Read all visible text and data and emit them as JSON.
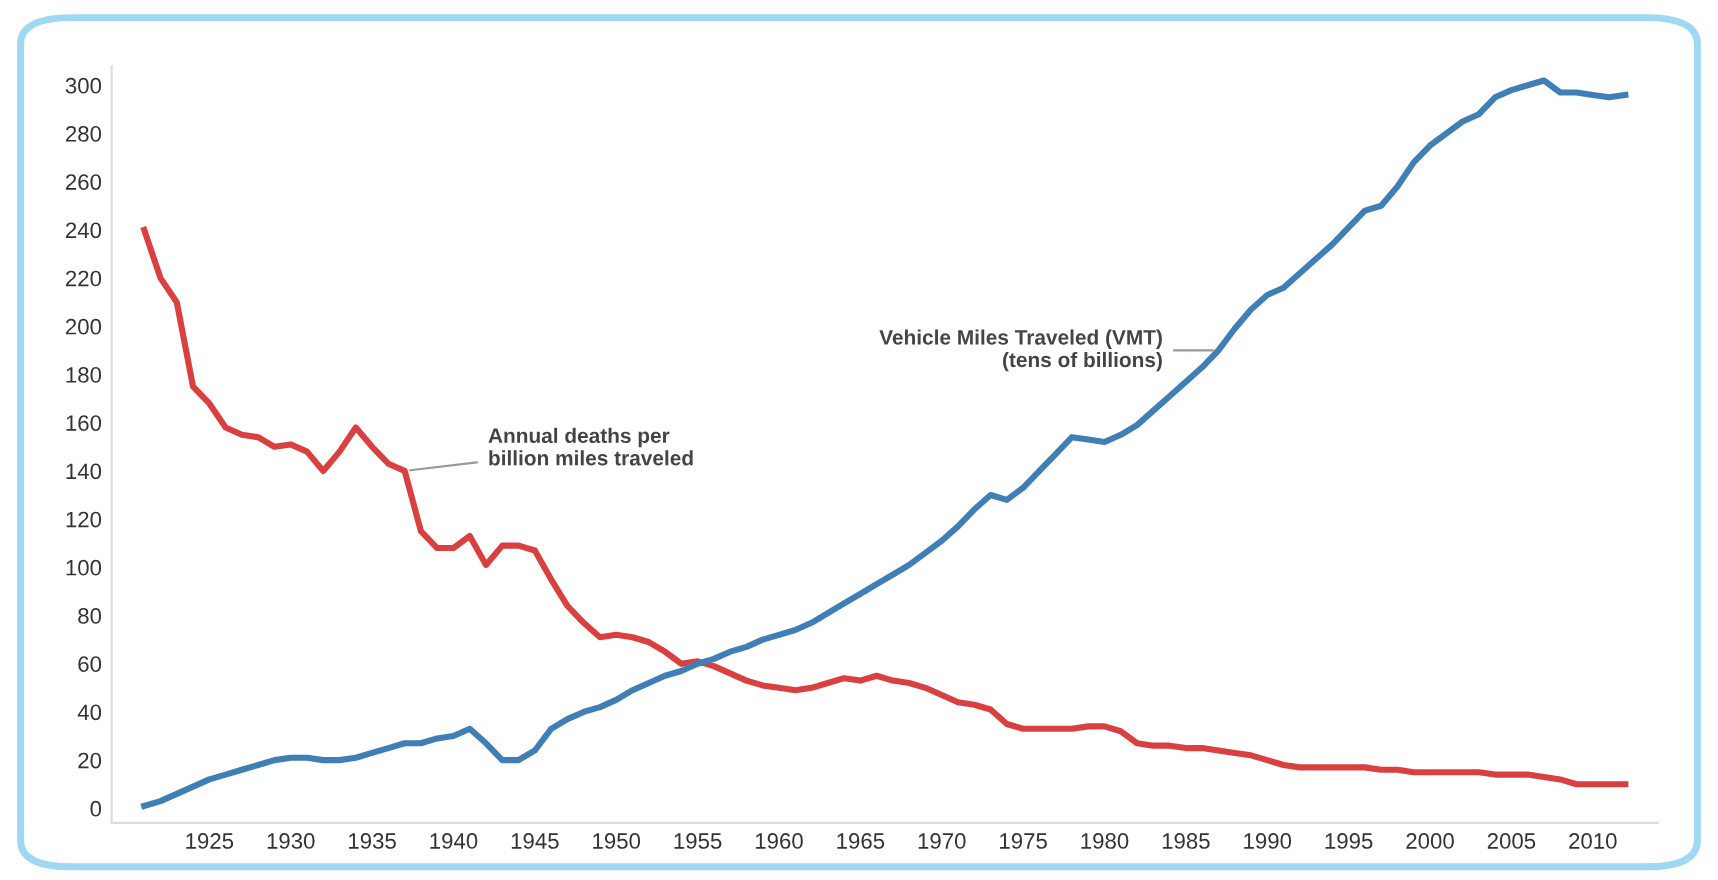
{
  "chart_data": {
    "type": "line",
    "x": [
      1921,
      1922,
      1923,
      1924,
      1925,
      1926,
      1927,
      1928,
      1929,
      1930,
      1931,
      1932,
      1933,
      1934,
      1935,
      1936,
      1937,
      1938,
      1939,
      1940,
      1941,
      1942,
      1943,
      1944,
      1945,
      1946,
      1947,
      1948,
      1949,
      1950,
      1951,
      1952,
      1953,
      1954,
      1955,
      1956,
      1957,
      1958,
      1959,
      1960,
      1961,
      1962,
      1963,
      1964,
      1965,
      1966,
      1967,
      1968,
      1969,
      1970,
      1971,
      1972,
      1973,
      1974,
      1975,
      1976,
      1977,
      1978,
      1979,
      1980,
      1981,
      1982,
      1983,
      1984,
      1985,
      1986,
      1987,
      1988,
      1989,
      1990,
      1991,
      1992,
      1993,
      1994,
      1995,
      1996,
      1997,
      1998,
      1999,
      2000,
      2001,
      2002,
      2003,
      2004,
      2005,
      2006,
      2007,
      2008,
      2009,
      2010,
      2011,
      2012
    ],
    "series": [
      {
        "color": "#d9403f",
        "values": [
          240,
          220,
          210,
          175,
          168,
          158,
          155,
          154,
          150,
          151,
          148,
          140,
          148,
          158,
          150,
          143,
          140,
          115,
          108,
          108,
          113,
          101,
          109,
          109,
          107,
          95,
          84,
          77,
          71,
          72,
          71,
          69,
          65,
          60,
          61,
          59,
          56,
          53,
          51,
          50,
          49,
          50,
          52,
          54,
          53,
          55,
          53,
          52,
          50,
          47,
          44,
          43,
          41,
          35,
          33,
          33,
          33,
          33,
          34,
          34,
          32,
          27,
          26,
          26,
          25,
          25,
          24,
          23,
          22,
          20,
          18,
          17,
          17,
          17,
          17,
          17,
          16,
          16,
          15,
          15,
          15,
          15,
          15,
          14,
          14,
          14,
          13,
          12,
          10,
          10,
          10,
          10
        ]
      },
      {
        "color": "#3f7fb5",
        "values": [
          1,
          3,
          6,
          9,
          12,
          14,
          16,
          18,
          20,
          21,
          21,
          20,
          20,
          21,
          23,
          25,
          27,
          27,
          29,
          30,
          33,
          27,
          20,
          20,
          24,
          33,
          37,
          40,
          42,
          45,
          49,
          52,
          55,
          57,
          60,
          62,
          65,
          67,
          70,
          72,
          74,
          77,
          81,
          85,
          89,
          93,
          97,
          101,
          106,
          111,
          117,
          124,
          130,
          128,
          133,
          140,
          147,
          154,
          153,
          152,
          155,
          159,
          165,
          171,
          177,
          183,
          190,
          199,
          207,
          213,
          216,
          222,
          228,
          234,
          241,
          248,
          250,
          258,
          268,
          275,
          280,
          285,
          288,
          295,
          298,
          300,
          302,
          297,
          297,
          296,
          295,
          296
        ]
      }
    ],
    "annotations": [
      {
        "text": "Annual deaths per\nbillion miles traveled",
        "x": 1937,
        "y": 140
      },
      {
        "text": "Vehicle Miles Traveled (VMT)\n(tens of billions)",
        "x": 1987,
        "y": 190
      }
    ],
    "xlim": [
      1919,
      2014
    ],
    "ylim": [
      -6,
      308
    ],
    "xticks": [
      1925,
      1930,
      1935,
      1940,
      1945,
      1950,
      1955,
      1960,
      1965,
      1970,
      1975,
      1980,
      1985,
      1990,
      1995,
      2000,
      2005,
      2010
    ],
    "yticks": [
      0,
      20,
      40,
      60,
      80,
      100,
      120,
      140,
      160,
      180,
      200,
      220,
      240,
      260,
      280,
      300
    ],
    "grid": false,
    "marker": "none",
    "line_style": "solid"
  }
}
